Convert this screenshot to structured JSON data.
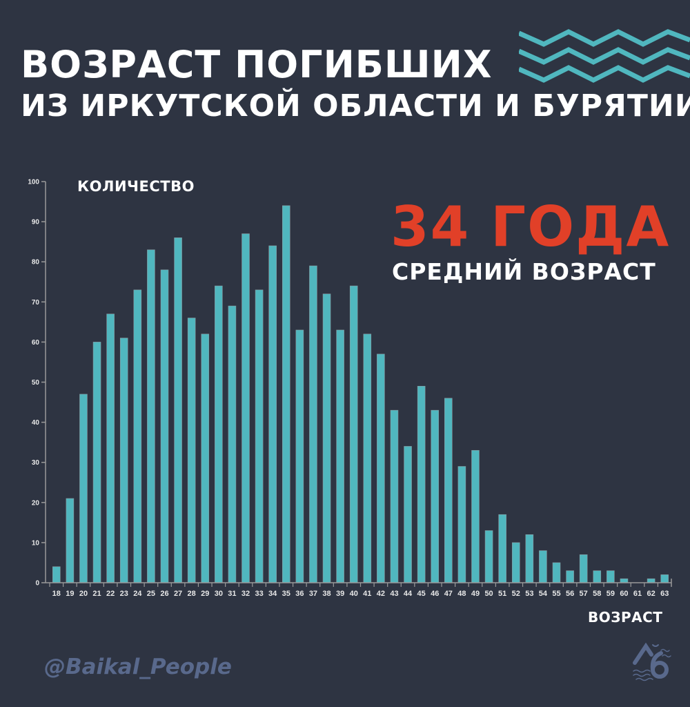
{
  "header": {
    "title_line1": "ВОЗРАСТ ПОГИБШИХ",
    "title_line2": "ИЗ ИРКУТСКОЙ ОБЛАСТИ И БУРЯТИИ"
  },
  "highlight": {
    "value": "34 ГОДА",
    "label": "СРЕДНИЙ ВОЗРАСТ"
  },
  "footer": {
    "watermark": "@Baikal_People",
    "logo_icon": "baikal-people-logo"
  },
  "colors": {
    "background": "#2e3442",
    "bar": "#50b7bf",
    "accent_red": "#e14028",
    "title_text": "#ffffff",
    "axis": "#9a9a9a",
    "watermark": "#59698c"
  },
  "chart_data": {
    "type": "bar",
    "title": "ВОЗРАСТ ПОГИБШИХ ИЗ ИРКУТСКОЙ ОБЛАСТИ И БУРЯТИИ",
    "xlabel": "ВОЗРАСТ",
    "ylabel": "КОЛИЧЕСТВО",
    "ylim": [
      0,
      100
    ],
    "yticks": [
      0,
      10,
      20,
      30,
      40,
      50,
      60,
      70,
      80,
      90,
      100
    ],
    "grid": false,
    "legend": null,
    "annotation": "34 ГОДА — СРЕДНИЙ ВОЗРАСТ",
    "categories": [
      "18",
      "19",
      "20",
      "21",
      "22",
      "23",
      "24",
      "25",
      "26",
      "27",
      "28",
      "29",
      "30",
      "31",
      "32",
      "33",
      "34",
      "35",
      "36",
      "37",
      "38",
      "39",
      "40",
      "41",
      "42",
      "43",
      "44",
      "45",
      "46",
      "47",
      "48",
      "49",
      "50",
      "51",
      "52",
      "53",
      "54",
      "55",
      "56",
      "57",
      "58",
      "59",
      "60",
      "61",
      "62",
      "63"
    ],
    "values": [
      4,
      21,
      47,
      60,
      67,
      61,
      73,
      83,
      78,
      86,
      66,
      62,
      74,
      69,
      87,
      73,
      84,
      94,
      63,
      79,
      72,
      63,
      74,
      62,
      57,
      43,
      34,
      49,
      43,
      46,
      29,
      33,
      13,
      17,
      10,
      12,
      8,
      5,
      3,
      7,
      3,
      3,
      1,
      0,
      1,
      2
    ]
  }
}
